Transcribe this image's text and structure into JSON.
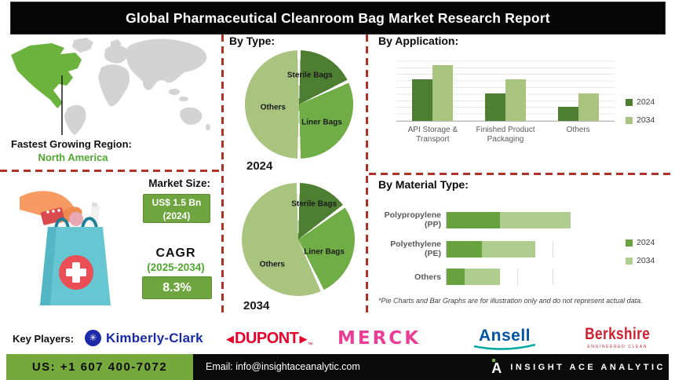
{
  "title": "Global Pharmaceutical Cleanroom Bag Market Research Report",
  "map": {
    "caption_label": "Fastest Growing Region:",
    "caption_value": "North America"
  },
  "market_size": {
    "heading": "Market Size:",
    "value_line1": "US$ 1.5 Bn",
    "value_line2": "(2024)",
    "cagr_label": "CAGR",
    "cagr_period": "(2025-2034)",
    "cagr_value": "8.3%"
  },
  "chart_data": [
    {
      "type": "pie",
      "title": "By Type:",
      "year": "2024",
      "labels": [
        "Sterile Bags",
        "Liner Bags",
        "Others"
      ],
      "values": [
        18,
        32,
        50
      ],
      "colors": [
        "#4e7e32",
        "#70ad47",
        "#a9c47f"
      ],
      "note": "illustrative"
    },
    {
      "type": "pie",
      "title": "By Type:",
      "year": "2034",
      "labels": [
        "Sterile Bags",
        "Liner Bags",
        "Others"
      ],
      "values": [
        15,
        28,
        57
      ],
      "colors": [
        "#4e7e32",
        "#70ad47",
        "#a9c47f"
      ],
      "note": "illustrative"
    },
    {
      "type": "bar",
      "title": "By Application:",
      "categories": [
        "API Storage & Transport",
        "Finished Product Packaging",
        "Others"
      ],
      "series": [
        {
          "name": "2024",
          "color": "#4e7e32",
          "values": [
            7.5,
            5,
            2.5
          ]
        },
        {
          "name": "2034",
          "color": "#a9c47f",
          "values": [
            10,
            7.5,
            5
          ]
        }
      ],
      "ylim": [
        0,
        10
      ],
      "grid": true,
      "legend_position": "right",
      "note": "illustrative, no numeric axis labels shown"
    },
    {
      "type": "bar-horizontal-stacked",
      "title": "By Material Type:",
      "categories": [
        "Polypropylene (PP)",
        "Polyethylene (PE)",
        "Others"
      ],
      "series": [
        {
          "name": "2024",
          "color": "#67a23f",
          "values": [
            1.5,
            1,
            0.5
          ]
        },
        {
          "name": "2034",
          "color": "#aecd8f",
          "values": [
            2,
            1.5,
            1
          ]
        }
      ],
      "xlim": [
        0,
        4
      ],
      "grid": true,
      "legend_position": "right",
      "note": "illustrative, no numeric axis labels shown"
    }
  ],
  "footnote": "*Pie Charts and Bar Graphs are for illustration only and do not represent actual data.",
  "key_players": {
    "label": "Key Players:",
    "companies": [
      "Kimberly-Clark",
      "DUPONT",
      "MERCK",
      "Ansell",
      "Berkshire"
    ],
    "kimberly_clark_badge": "✳",
    "dupont_arrow_left": "◀",
    "dupont_arrow_right": "▶",
    "dupont_tm": "™",
    "berkshire_tagline": "ENGINEERED CLEAN"
  },
  "footer": {
    "phone": "US: +1 607 400-7072",
    "email": "Email: info@insightaceanalytic.com",
    "brand": "INSIGHT ACE ANALYTIC",
    "brand_glyph": "A"
  },
  "colors": {
    "dark_green": "#4e7e32",
    "mid_green": "#70ad47",
    "light_green": "#a9c47f",
    "na_green": "#6cb33e",
    "box_green": "#6fa53f",
    "footer_green": "#76a93d",
    "accent_text_green": "#4ea72e",
    "dash_red": "#b03226"
  }
}
